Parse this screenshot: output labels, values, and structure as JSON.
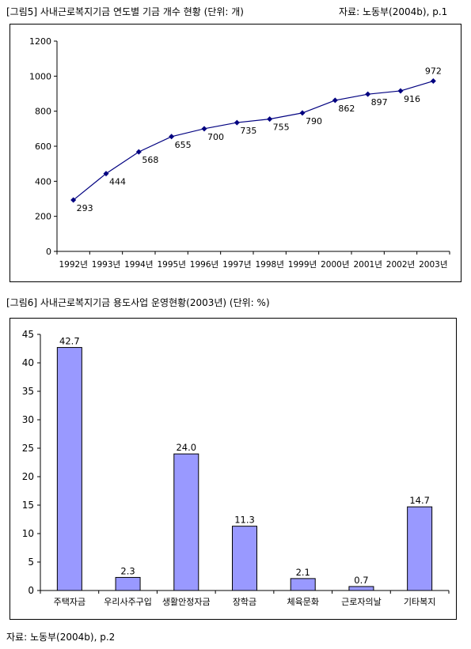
{
  "fig5": {
    "caption": "[그림5] 사내근로복지기금 연도별 기금 개수 현황 (단위: 개)",
    "source": "자료: 노동부(2004b), p.1"
  },
  "fig6": {
    "caption": "[그림6] 사내근로복지기금 용도사업 운영현황(2003년) (단위: %)"
  },
  "footer": {
    "source": "자료: 노동부(2004b), p.2"
  },
  "chart_data": [
    {
      "type": "line",
      "title": "",
      "xlabel": "",
      "ylabel": "",
      "categories": [
        "1992년",
        "1993년",
        "1994년",
        "1995년",
        "1996년",
        "1997년",
        "1998년",
        "1999년",
        "2000년",
        "2001년",
        "2002년",
        "2003년"
      ],
      "values": [
        293,
        444,
        568,
        655,
        700,
        735,
        755,
        790,
        862,
        897,
        916,
        972
      ],
      "ylim": [
        0,
        1200
      ],
      "yticks": [
        "0",
        "200",
        "400",
        "600",
        "800",
        "1000",
        "1200"
      ],
      "grid": false,
      "color": "#000080"
    },
    {
      "type": "bar",
      "title": "",
      "xlabel": "",
      "ylabel": "",
      "categories": [
        "주택자금",
        "우리사주구입",
        "생활안정자금",
        "장학금",
        "체육문화",
        "근로자의날",
        "기타복지"
      ],
      "values": [
        42.7,
        2.3,
        24.0,
        11.3,
        2.1,
        0.7,
        14.7
      ],
      "labels": [
        "42.7",
        "2.3",
        "24.0",
        "11.3",
        "2.1",
        "0.7",
        "14.7"
      ],
      "ylim": [
        0,
        45
      ],
      "yticks": [
        "0",
        "5",
        "10",
        "15",
        "20",
        "25",
        "30",
        "35",
        "40",
        "45"
      ],
      "grid": false,
      "bar_color": "#9999FF"
    }
  ]
}
